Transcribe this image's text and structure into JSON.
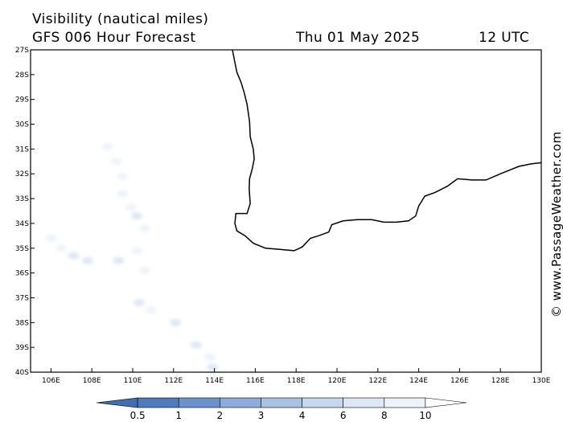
{
  "header": {
    "title": "Visibility (nautical miles)",
    "subtitle": "GFS 006 Hour Forecast",
    "datetime": "Thu 01 May 2025",
    "time": "12 UTC"
  },
  "map": {
    "region": "South-west Western Australia",
    "lat_range": [
      -40,
      -27
    ],
    "lon_range": [
      105,
      130
    ],
    "lat_ticks": [
      "27S",
      "28S",
      "29S",
      "30S",
      "31S",
      "32S",
      "33S",
      "34S",
      "35S",
      "36S",
      "37S",
      "38S",
      "39S",
      "40S"
    ],
    "lon_ticks": [
      "106E",
      "108E",
      "110E",
      "112E",
      "114E",
      "116E",
      "118E",
      "120E",
      "122E",
      "124E",
      "126E",
      "128E",
      "130E"
    ],
    "coastline": [
      [
        114.88,
        -27.0
      ],
      [
        115.0,
        -27.5
      ],
      [
        115.1,
        -27.9
      ],
      [
        115.3,
        -28.3
      ],
      [
        115.45,
        -28.7
      ],
      [
        115.6,
        -29.2
      ],
      [
        115.72,
        -29.9
      ],
      [
        115.75,
        -30.5
      ],
      [
        115.9,
        -31.0
      ],
      [
        115.95,
        -31.4
      ],
      [
        115.85,
        -31.8
      ],
      [
        115.72,
        -32.2
      ],
      [
        115.7,
        -32.6
      ],
      [
        115.75,
        -33.2
      ],
      [
        115.6,
        -33.6
      ],
      [
        115.3,
        -33.6
      ],
      [
        115.05,
        -33.6
      ],
      [
        115.0,
        -34.0
      ],
      [
        115.1,
        -34.3
      ],
      [
        115.5,
        -34.5
      ],
      [
        115.9,
        -34.8
      ],
      [
        116.5,
        -35.0
      ],
      [
        117.2,
        -35.05
      ],
      [
        117.9,
        -35.1
      ],
      [
        118.3,
        -34.95
      ],
      [
        118.7,
        -34.6
      ],
      [
        119.1,
        -34.5
      ],
      [
        119.6,
        -34.35
      ],
      [
        119.75,
        -34.05
      ],
      [
        120.3,
        -33.9
      ],
      [
        121.0,
        -33.85
      ],
      [
        121.7,
        -33.85
      ],
      [
        122.3,
        -33.95
      ],
      [
        122.9,
        -33.95
      ],
      [
        123.5,
        -33.9
      ],
      [
        123.85,
        -33.7
      ],
      [
        124.0,
        -33.3
      ],
      [
        124.3,
        -32.9
      ],
      [
        124.8,
        -32.75
      ],
      [
        125.4,
        -32.5
      ],
      [
        125.9,
        -32.2
      ],
      [
        126.6,
        -32.25
      ],
      [
        127.3,
        -32.25
      ],
      [
        128.0,
        -32.0
      ],
      [
        128.9,
        -31.7
      ],
      [
        129.5,
        -31.6
      ],
      [
        130.0,
        -31.55
      ]
    ]
  },
  "chart_data": {
    "type": "heatmap",
    "title": "Visibility (nautical miles)",
    "subtitle": "GFS 006 Hour Forecast",
    "valid_time": "Thu 01 May 2025 12 UTC",
    "x_range": [
      105,
      130
    ],
    "y_range": [
      -40,
      -27
    ],
    "colorbar_levels": [
      0.5,
      1,
      2,
      3,
      4,
      6,
      8,
      10
    ],
    "colorbar_colors": [
      "#4d7bbd",
      "#6a93cb",
      "#8cacd9",
      "#a9c2e3",
      "#c6d7ee",
      "#dde7f5",
      "#eef3fa",
      "#ffffff"
    ],
    "features": [
      {
        "lon": 108.75,
        "lat": -30.9,
        "level": 8
      },
      {
        "lon": 109.2,
        "lat": -31.5,
        "level": 8
      },
      {
        "lon": 109.5,
        "lat": -32.1,
        "level": 8
      },
      {
        "lon": 109.5,
        "lat": -32.8,
        "level": 8
      },
      {
        "lon": 109.9,
        "lat": -33.35,
        "level": 8
      },
      {
        "lon": 110.2,
        "lat": -33.7,
        "level": 6
      },
      {
        "lon": 110.6,
        "lat": -34.2,
        "level": 8
      },
      {
        "lon": 106.0,
        "lat": -34.6,
        "level": 8
      },
      {
        "lon": 106.5,
        "lat": -35.0,
        "level": 8
      },
      {
        "lon": 107.1,
        "lat": -35.3,
        "level": 6
      },
      {
        "lon": 107.8,
        "lat": -35.5,
        "level": 6
      },
      {
        "lon": 109.3,
        "lat": -35.5,
        "level": 6
      },
      {
        "lon": 110.2,
        "lat": -35.1,
        "level": 8
      },
      {
        "lon": 110.6,
        "lat": -35.9,
        "level": 8
      },
      {
        "lon": 110.3,
        "lat": -37.2,
        "level": 6
      },
      {
        "lon": 110.9,
        "lat": -37.5,
        "level": 8
      },
      {
        "lon": 112.1,
        "lat": -38.0,
        "level": 6
      },
      {
        "lon": 113.1,
        "lat": -38.9,
        "level": 6
      },
      {
        "lon": 113.8,
        "lat": -39.4,
        "level": 8
      },
      {
        "lon": 113.9,
        "lat": -39.8,
        "level": 6
      }
    ]
  },
  "colorbar": {
    "labels": [
      "0.5",
      "1",
      "2",
      "3",
      "4",
      "6",
      "8",
      "10"
    ]
  },
  "credit": "© www.PassageWeather.com"
}
